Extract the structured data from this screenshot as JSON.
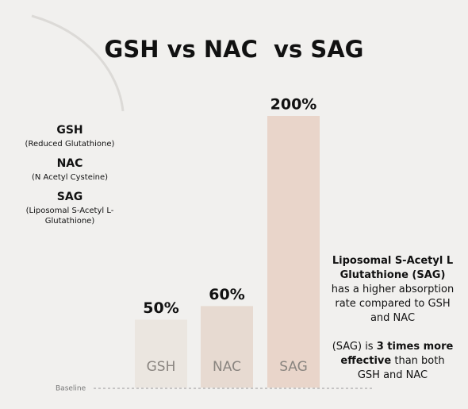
{
  "chart_data": {
    "type": "bar",
    "title": "GSH vs NAC  vs SAG",
    "categories": [
      "GSH",
      "NAC",
      "SAG"
    ],
    "values": [
      50,
      60,
      200
    ],
    "value_labels": [
      "50%",
      "60%",
      "200%"
    ],
    "colors": [
      "#ebe6e0",
      "#e7dad1",
      "#e9d5ca"
    ],
    "baseline_label": "Baseline",
    "definitions": [
      {
        "name": "GSH",
        "description": "(Reduced Glutathione)"
      },
      {
        "name": "NAC",
        "description": "(N Acetyl Cysteine)"
      },
      {
        "name": "SAG",
        "description": "(Liposomal S-Acetyl L-Glutathione)"
      }
    ],
    "note": {
      "heading": "Liposomal S-Acetyl L Glutathione (SAG)",
      "text": "has a higher absorption rate compared to GSH and NAC"
    },
    "note2": {
      "before": "(SAG) is",
      "bold": "3 times more effective",
      "after": "than both GSH and NAC"
    }
  }
}
